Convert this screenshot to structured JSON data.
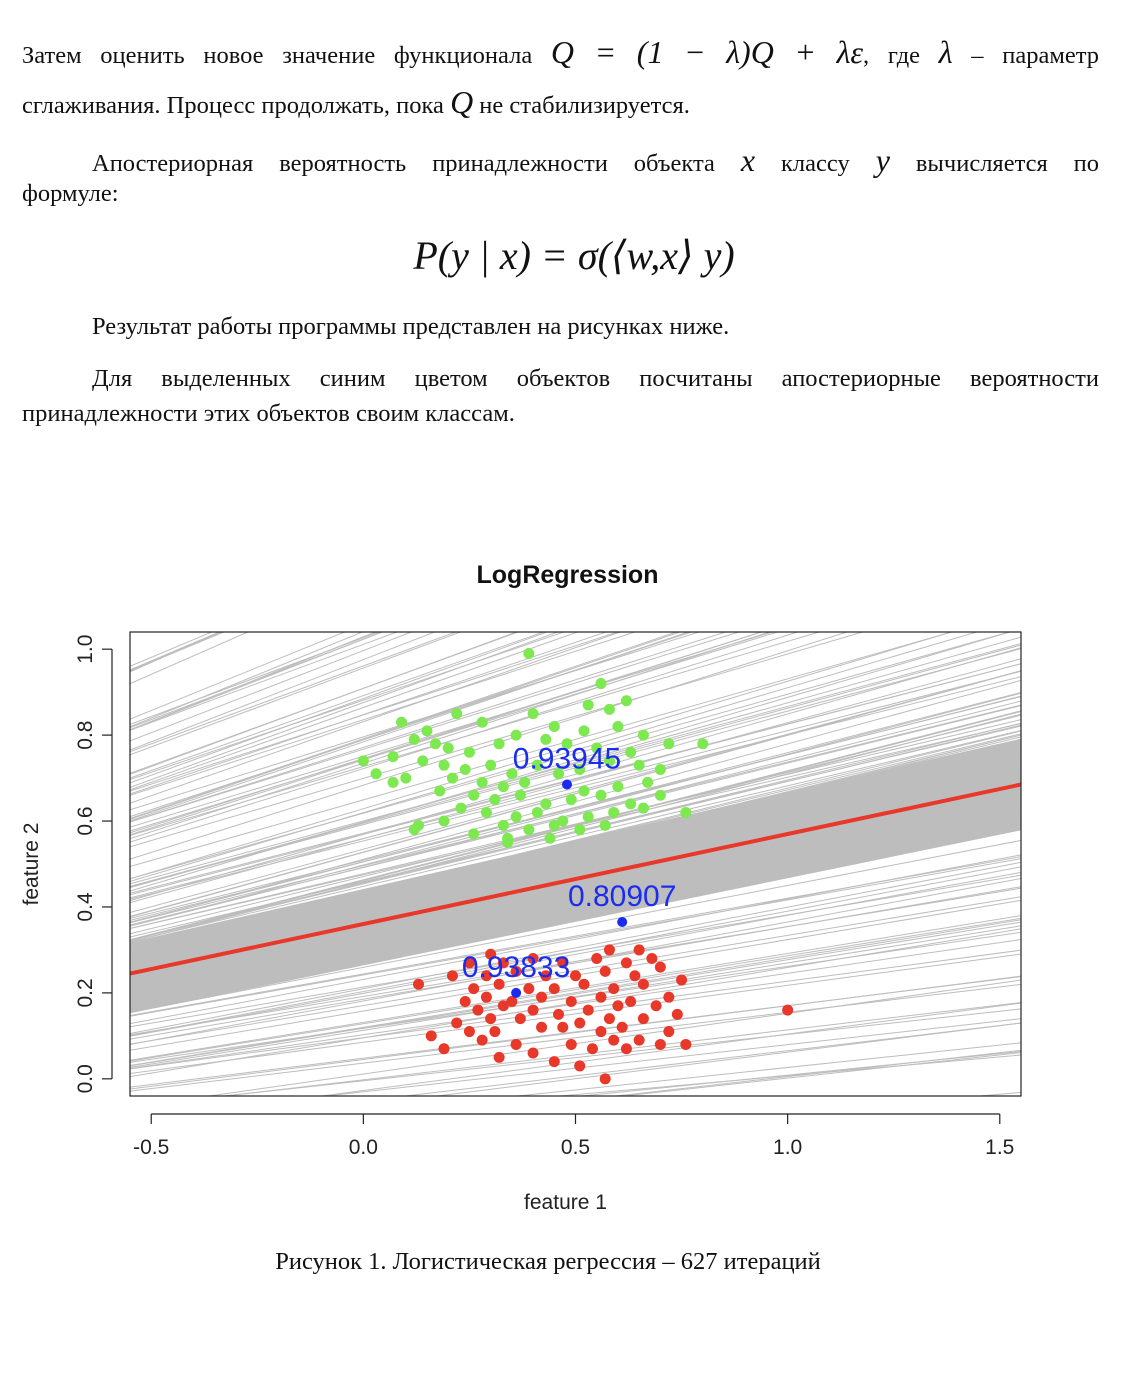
{
  "text": {
    "p1_part1": "Затем оценить новое значение функционала",
    "p1_formula": "Q = (1 − λ)Q + λε",
    "p1_part2": ", где",
    "p1_lambda": "λ",
    "p1_part3": "– параметр",
    "p1b_part1": "сглаживания. Процесс продолжать, пока",
    "p1b_q": "Q",
    "p1b_part2": "не стабилизируется.",
    "p2_part1": "Апостериорная вероятность принадлежности объекта",
    "p2_x": "x",
    "p2_part2": "классу",
    "p2_y": "y",
    "p2_part3": "вычисляется по",
    "p2b": "формуле:",
    "formula": "P(y | x) = σ(⟨w,x⟩ y)",
    "p3": "Результат работы программы представлен на рисунках ниже.",
    "p4": "Для выделенных синим цветом объектов посчитаны апостериорные вероятности",
    "p4b": "принадлежности этих объектов своим классам.",
    "caption": "Рисунок 1. Логистическая регрессия – 627 итераций"
  },
  "chart_data": {
    "type": "scatter",
    "title": "LogRegression",
    "xlabel": "feature 1",
    "ylabel": "feature 2",
    "xlim": [
      -0.55,
      1.55
    ],
    "ylim": [
      -0.04,
      1.04
    ],
    "xticks": [
      "-0.5",
      "0.0",
      "0.5",
      "1.0",
      "1.5"
    ],
    "xtick_values": [
      -0.5,
      0.0,
      0.5,
      1.0,
      1.5
    ],
    "yticks": [
      "0.0",
      "0.2",
      "0.4",
      "0.6",
      "0.8",
      "1.0"
    ],
    "ytick_values": [
      0.0,
      0.2,
      0.4,
      0.6,
      0.8,
      1.0
    ],
    "grid": false,
    "colors": {
      "class_top": "#7de84f",
      "class_bottom": "#e8382a",
      "highlight": "#1a2cf0",
      "final_line": "#e8382a",
      "iteration_lines": "#bdbdbd"
    },
    "final_line": {
      "x": [
        -0.55,
        1.55
      ],
      "y": [
        0.245,
        0.685
      ]
    },
    "iteration_lines_count": 627,
    "series": [
      {
        "name": "class_top",
        "points": [
          [
            0.39,
            0.99
          ],
          [
            0.56,
            0.92
          ],
          [
            0.62,
            0.88
          ],
          [
            0.53,
            0.87
          ],
          [
            0.58,
            0.86
          ],
          [
            0.4,
            0.85
          ],
          [
            0.22,
            0.85
          ],
          [
            0.09,
            0.83
          ],
          [
            0.15,
            0.81
          ],
          [
            0.28,
            0.83
          ],
          [
            0.45,
            0.82
          ],
          [
            0.52,
            0.81
          ],
          [
            0.6,
            0.82
          ],
          [
            0.66,
            0.8
          ],
          [
            0.8,
            0.78
          ],
          [
            0.12,
            0.79
          ],
          [
            0.17,
            0.78
          ],
          [
            0.2,
            0.77
          ],
          [
            0.25,
            0.76
          ],
          [
            0.32,
            0.78
          ],
          [
            0.36,
            0.8
          ],
          [
            0.43,
            0.79
          ],
          [
            0.48,
            0.78
          ],
          [
            0.55,
            0.77
          ],
          [
            0.63,
            0.76
          ],
          [
            0.72,
            0.78
          ],
          [
            0.0,
            0.74
          ],
          [
            0.07,
            0.75
          ],
          [
            0.14,
            0.74
          ],
          [
            0.19,
            0.73
          ],
          [
            0.24,
            0.72
          ],
          [
            0.3,
            0.73
          ],
          [
            0.35,
            0.71
          ],
          [
            0.41,
            0.73
          ],
          [
            0.46,
            0.71
          ],
          [
            0.51,
            0.72
          ],
          [
            0.58,
            0.74
          ],
          [
            0.65,
            0.73
          ],
          [
            0.7,
            0.72
          ],
          [
            0.03,
            0.71
          ],
          [
            0.1,
            0.7
          ],
          [
            0.21,
            0.7
          ],
          [
            0.28,
            0.69
          ],
          [
            0.33,
            0.68
          ],
          [
            0.38,
            0.69
          ],
          [
            0.52,
            0.67
          ],
          [
            0.6,
            0.68
          ],
          [
            0.67,
            0.69
          ],
          [
            0.07,
            0.69
          ],
          [
            0.18,
            0.67
          ],
          [
            0.26,
            0.66
          ],
          [
            0.31,
            0.65
          ],
          [
            0.37,
            0.66
          ],
          [
            0.43,
            0.64
          ],
          [
            0.49,
            0.65
          ],
          [
            0.56,
            0.66
          ],
          [
            0.63,
            0.64
          ],
          [
            0.7,
            0.66
          ],
          [
            0.23,
            0.63
          ],
          [
            0.29,
            0.62
          ],
          [
            0.36,
            0.61
          ],
          [
            0.41,
            0.62
          ],
          [
            0.47,
            0.6
          ],
          [
            0.53,
            0.61
          ],
          [
            0.59,
            0.62
          ],
          [
            0.66,
            0.63
          ],
          [
            0.13,
            0.59
          ],
          [
            0.19,
            0.6
          ],
          [
            0.33,
            0.59
          ],
          [
            0.39,
            0.58
          ],
          [
            0.45,
            0.59
          ],
          [
            0.51,
            0.58
          ],
          [
            0.57,
            0.59
          ],
          [
            0.12,
            0.58
          ],
          [
            0.26,
            0.57
          ],
          [
            0.34,
            0.56
          ],
          [
            0.44,
            0.56
          ],
          [
            0.34,
            0.55
          ],
          [
            0.76,
            0.62
          ]
        ]
      },
      {
        "name": "class_bottom",
        "points": [
          [
            0.57,
            0.0
          ],
          [
            0.51,
            0.03
          ],
          [
            0.45,
            0.04
          ],
          [
            0.32,
            0.05
          ],
          [
            0.4,
            0.06
          ],
          [
            0.19,
            0.07
          ],
          [
            0.36,
            0.08
          ],
          [
            0.54,
            0.07
          ],
          [
            0.62,
            0.07
          ],
          [
            0.7,
            0.08
          ],
          [
            0.76,
            0.08
          ],
          [
            0.28,
            0.09
          ],
          [
            0.49,
            0.08
          ],
          [
            0.59,
            0.09
          ],
          [
            0.65,
            0.09
          ],
          [
            0.16,
            0.1
          ],
          [
            0.25,
            0.11
          ],
          [
            0.31,
            0.11
          ],
          [
            0.42,
            0.12
          ],
          [
            0.47,
            0.12
          ],
          [
            0.56,
            0.11
          ],
          [
            0.61,
            0.12
          ],
          [
            0.72,
            0.11
          ],
          [
            1.0,
            0.16
          ],
          [
            0.22,
            0.13
          ],
          [
            0.3,
            0.14
          ],
          [
            0.37,
            0.14
          ],
          [
            0.51,
            0.13
          ],
          [
            0.58,
            0.14
          ],
          [
            0.66,
            0.14
          ],
          [
            0.74,
            0.15
          ],
          [
            0.27,
            0.16
          ],
          [
            0.33,
            0.17
          ],
          [
            0.4,
            0.16
          ],
          [
            0.46,
            0.15
          ],
          [
            0.53,
            0.16
          ],
          [
            0.6,
            0.17
          ],
          [
            0.69,
            0.17
          ],
          [
            0.24,
            0.18
          ],
          [
            0.29,
            0.19
          ],
          [
            0.35,
            0.18
          ],
          [
            0.42,
            0.19
          ],
          [
            0.49,
            0.18
          ],
          [
            0.56,
            0.19
          ],
          [
            0.63,
            0.18
          ],
          [
            0.72,
            0.19
          ],
          [
            0.13,
            0.22
          ],
          [
            0.26,
            0.21
          ],
          [
            0.32,
            0.22
          ],
          [
            0.39,
            0.21
          ],
          [
            0.45,
            0.21
          ],
          [
            0.52,
            0.22
          ],
          [
            0.59,
            0.21
          ],
          [
            0.66,
            0.22
          ],
          [
            0.75,
            0.23
          ],
          [
            0.21,
            0.24
          ],
          [
            0.29,
            0.24
          ],
          [
            0.36,
            0.25
          ],
          [
            0.43,
            0.24
          ],
          [
            0.5,
            0.24
          ],
          [
            0.57,
            0.25
          ],
          [
            0.64,
            0.24
          ],
          [
            0.7,
            0.26
          ],
          [
            0.25,
            0.27
          ],
          [
            0.33,
            0.27
          ],
          [
            0.4,
            0.28
          ],
          [
            0.47,
            0.27
          ],
          [
            0.55,
            0.28
          ],
          [
            0.62,
            0.27
          ],
          [
            0.68,
            0.28
          ],
          [
            0.3,
            0.29
          ],
          [
            0.58,
            0.3
          ],
          [
            0.65,
            0.3
          ]
        ]
      },
      {
        "name": "highlighted",
        "points": [
          [
            0.48,
            0.685
          ],
          [
            0.61,
            0.365
          ],
          [
            0.36,
            0.2
          ]
        ]
      }
    ],
    "annotations": [
      {
        "text": "0.93945",
        "x": 0.48,
        "y": 0.685
      },
      {
        "text": "0.80907",
        "x": 0.61,
        "y": 0.365
      },
      {
        "text": "0.93833",
        "x": 0.36,
        "y": 0.2
      }
    ]
  }
}
